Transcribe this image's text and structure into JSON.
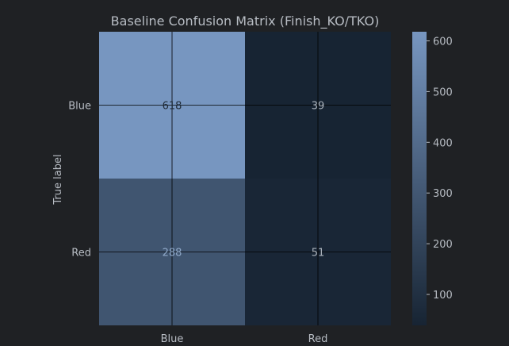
{
  "chart_data": {
    "type": "heatmap",
    "title": "Baseline Confusion Matrix (Finish_KO/TKO)",
    "ylabel": "True label",
    "xlabel": "",
    "row_labels": [
      "Blue",
      "Red"
    ],
    "col_labels": [
      "Blue",
      "Red"
    ],
    "values": [
      [
        618,
        39
      ],
      [
        288,
        51
      ]
    ],
    "colorbar": {
      "ticks": [
        100,
        200,
        300,
        400,
        500,
        600
      ],
      "range": [
        39,
        618
      ],
      "color_low": "#172433",
      "color_high": "#7796c0"
    },
    "grid": true,
    "colors": {
      "background": "#1f2124",
      "text": "#b7bcc3",
      "grid_line": "#000000"
    }
  }
}
